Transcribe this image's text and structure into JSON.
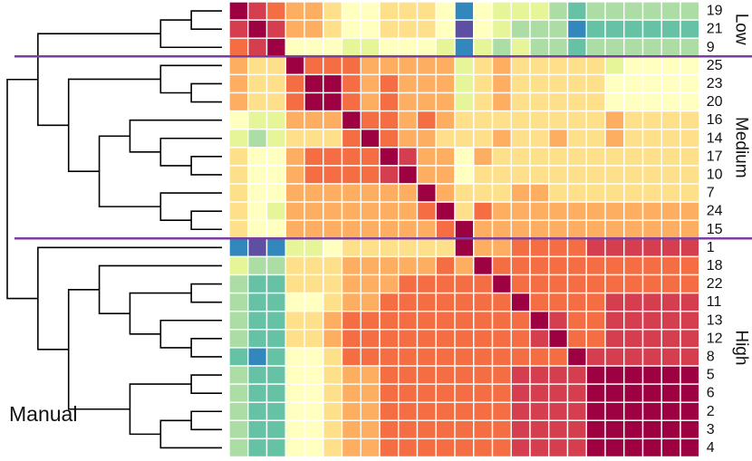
{
  "chart_data": {
    "type": "heatmap",
    "title": "",
    "method_label": "Manual",
    "row_labels": [
      "19",
      "21",
      "9",
      "25",
      "23",
      "20",
      "16",
      "14",
      "17",
      "10",
      "7",
      "24",
      "15",
      "1",
      "18",
      "22",
      "11",
      "13",
      "12",
      "8",
      "5",
      "6",
      "2",
      "3",
      "4"
    ],
    "col_labels": [],
    "groups": [
      {
        "name": "Low",
        "size": 3
      },
      {
        "name": "Medium",
        "size": 10
      },
      {
        "name": "High",
        "size": 12
      }
    ],
    "colormap": [
      "#5e4fa2",
      "#3288bd",
      "#66c2a5",
      "#abdda4",
      "#e6f598",
      "#ffffbf",
      "#fee08b",
      "#fdae61",
      "#f46d43",
      "#d53e4f",
      "#9e0142"
    ],
    "color_scale_range": [
      0,
      10
    ],
    "values": [
      [
        10,
        9,
        8,
        7,
        7,
        6,
        5,
        5,
        6,
        6,
        6,
        5,
        1,
        5,
        4,
        4,
        4,
        3,
        2,
        3,
        3,
        3,
        3,
        3,
        3
      ],
      [
        9,
        10,
        9,
        7,
        7,
        6,
        5,
        5,
        6,
        6,
        6,
        5,
        0,
        5,
        4,
        3,
        3,
        3,
        1,
        2,
        2,
        2,
        2,
        2,
        2
      ],
      [
        8,
        9,
        10,
        5,
        5,
        5,
        4,
        4,
        5,
        5,
        5,
        4,
        1,
        4,
        3,
        4,
        3,
        3,
        2,
        3,
        3,
        3,
        3,
        3,
        3
      ],
      [
        7,
        6,
        6,
        10,
        8,
        8,
        8,
        7,
        7,
        7,
        7,
        7,
        4,
        6,
        7,
        6,
        6,
        6,
        6,
        6,
        4,
        5,
        5,
        5,
        5
      ],
      [
        7,
        6,
        6,
        8,
        10,
        10,
        8,
        7,
        8,
        7,
        7,
        7,
        4,
        6,
        7,
        6,
        6,
        6,
        6,
        6,
        5,
        5,
        5,
        5,
        5
      ],
      [
        7,
        6,
        6,
        8,
        10,
        10,
        8,
        7,
        8,
        7,
        7,
        7,
        4,
        6,
        7,
        6,
        6,
        6,
        6,
        6,
        5,
        5,
        5,
        5,
        5
      ],
      [
        5,
        4,
        4,
        7,
        7,
        7,
        10,
        8,
        8,
        7,
        8,
        7,
        6,
        6,
        6,
        6,
        6,
        6,
        6,
        6,
        7,
        6,
        6,
        6,
        6
      ],
      [
        4,
        3,
        4,
        6,
        6,
        6,
        8,
        10,
        8,
        7,
        7,
        6,
        6,
        6,
        7,
        6,
        6,
        7,
        6,
        6,
        7,
        6,
        6,
        6,
        6
      ],
      [
        6,
        5,
        5,
        7,
        8,
        8,
        8,
        8,
        10,
        9,
        7,
        7,
        5,
        7,
        6,
        6,
        6,
        6,
        6,
        6,
        6,
        6,
        6,
        6,
        6
      ],
      [
        6,
        5,
        5,
        7,
        8,
        8,
        8,
        8,
        9,
        10,
        7,
        7,
        5,
        6,
        6,
        6,
        6,
        6,
        6,
        6,
        6,
        6,
        6,
        6,
        6
      ],
      [
        6,
        5,
        5,
        7,
        7,
        7,
        7,
        7,
        7,
        7,
        10,
        7,
        6,
        6,
        6,
        7,
        7,
        6,
        6,
        6,
        6,
        6,
        6,
        6,
        6
      ],
      [
        6,
        5,
        4,
        7,
        7,
        7,
        7,
        7,
        7,
        7,
        8,
        10,
        6,
        8,
        7,
        7,
        7,
        7,
        7,
        7,
        7,
        7,
        7,
        7,
        7
      ],
      [
        6,
        5,
        5,
        7,
        7,
        7,
        7,
        7,
        7,
        7,
        7,
        8,
        10,
        7,
        7,
        7,
        7,
        7,
        7,
        7,
        7,
        7,
        7,
        7,
        7
      ],
      [
        1,
        0,
        1,
        4,
        4,
        5,
        6,
        6,
        6,
        6,
        6,
        6,
        10,
        7,
        7,
        8,
        8,
        8,
        8,
        9,
        9,
        9,
        9,
        9,
        9
      ],
      [
        4,
        3,
        3,
        6,
        6,
        6,
        7,
        7,
        7,
        7,
        7,
        8,
        7,
        10,
        8,
        8,
        8,
        8,
        8,
        8,
        8,
        8,
        8,
        8,
        8
      ],
      [
        3,
        2,
        2,
        6,
        6,
        6,
        7,
        7,
        7,
        8,
        8,
        8,
        8,
        8,
        10,
        8,
        8,
        8,
        8,
        8,
        8,
        8,
        8,
        8,
        8
      ],
      [
        3,
        2,
        2,
        5,
        5,
        6,
        7,
        7,
        8,
        8,
        8,
        8,
        8,
        8,
        8,
        10,
        8,
        8,
        8,
        8,
        9,
        9,
        9,
        9,
        9
      ],
      [
        3,
        2,
        2,
        6,
        6,
        7,
        8,
        8,
        8,
        8,
        8,
        8,
        8,
        8,
        8,
        8,
        10,
        9,
        8,
        8,
        9,
        9,
        9,
        9,
        9
      ],
      [
        3,
        2,
        2,
        6,
        6,
        7,
        8,
        8,
        8,
        8,
        8,
        8,
        8,
        8,
        8,
        8,
        9,
        10,
        8,
        8,
        9,
        9,
        9,
        9,
        9
      ],
      [
        2,
        1,
        2,
        5,
        5,
        6,
        8,
        8,
        8,
        8,
        8,
        8,
        8,
        8,
        8,
        8,
        8,
        8,
        10,
        9,
        9,
        9,
        9,
        9,
        9
      ],
      [
        3,
        2,
        2,
        5,
        5,
        6,
        7,
        7,
        8,
        8,
        8,
        8,
        8,
        8,
        8,
        9,
        9,
        9,
        9,
        10,
        10,
        10,
        10,
        10,
        10
      ],
      [
        3,
        2,
        2,
        5,
        5,
        6,
        7,
        7,
        8,
        8,
        8,
        8,
        8,
        8,
        8,
        9,
        9,
        9,
        9,
        10,
        10,
        10,
        10,
        10,
        10
      ],
      [
        3,
        2,
        2,
        5,
        5,
        6,
        7,
        7,
        8,
        8,
        8,
        8,
        8,
        8,
        8,
        9,
        9,
        9,
        9,
        10,
        10,
        10,
        10,
        10,
        10
      ],
      [
        3,
        2,
        2,
        5,
        5,
        6,
        7,
        7,
        8,
        8,
        8,
        8,
        8,
        8,
        8,
        9,
        9,
        9,
        9,
        10,
        10,
        10,
        10,
        10,
        10
      ],
      [
        3,
        2,
        2,
        5,
        5,
        6,
        7,
        7,
        8,
        8,
        8,
        8,
        8,
        8,
        8,
        9,
        9,
        9,
        9,
        10,
        10,
        10,
        10,
        10,
        10
      ]
    ],
    "dendrogram_merges": [
      [
        0,
        1
      ],
      [
        25,
        2
      ],
      [
        4,
        5
      ],
      [
        3,
        27
      ],
      [
        8,
        9
      ],
      [
        7,
        29
      ],
      [
        6,
        30
      ],
      [
        11,
        12
      ],
      [
        10,
        32
      ],
      [
        31,
        33
      ],
      [
        28,
        34
      ],
      [
        26,
        35
      ],
      [
        20,
        21
      ],
      [
        22,
        23
      ],
      [
        38,
        24
      ],
      [
        37,
        39
      ],
      [
        18,
        19
      ],
      [
        17,
        41
      ],
      [
        15,
        16
      ],
      [
        42,
        43
      ],
      [
        14,
        44
      ],
      [
        40,
        45
      ],
      [
        13,
        46
      ],
      [
        36,
        47
      ]
    ],
    "legend": "none",
    "grid": true
  }
}
